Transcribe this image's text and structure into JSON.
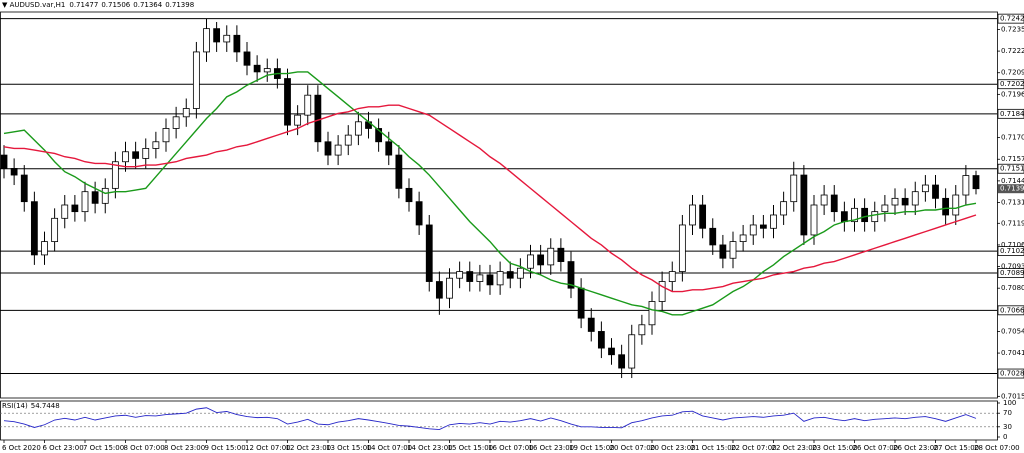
{
  "chart_data": [
    {
      "type": "candlestick",
      "title": "AUDUSD.var,H1",
      "categories": [
        "6 Oct 2020",
        null,
        null,
        null,
        "6 Oct 23:00",
        null,
        null,
        null,
        "7 Oct 15:00",
        null,
        null,
        null,
        "8 Oct 07:00",
        null,
        null,
        null,
        "8 Oct 23:00",
        null,
        null,
        null,
        "9 Oct 15:00",
        null,
        null,
        null,
        "12 Oct 07:00",
        null,
        null,
        null,
        "12 Oct 23:00",
        null,
        null,
        null,
        "13 Oct 15:00",
        null,
        null,
        null,
        "14 Oct 07:00",
        null,
        null,
        null,
        "14 Oct 23:00",
        null,
        null,
        null,
        "15 Oct 15:00",
        null,
        null,
        null,
        "16 Oct 07:00",
        null,
        null,
        null,
        "16 Oct 23:00",
        null,
        null,
        null,
        "19 Oct 15:00",
        null,
        null,
        null,
        "20 Oct 07:00",
        null,
        null,
        null,
        "20 Oct 23:00",
        null,
        null,
        null,
        "21 Oct 15:00",
        null,
        null,
        null,
        "22 Oct 07:00",
        null,
        null,
        null,
        "22 Oct 23:00",
        null,
        null,
        null,
        "23 Oct 15:00",
        null,
        null,
        null,
        "26 Oct 07:00",
        null,
        null,
        null,
        "26 Oct 23:00",
        null,
        null,
        null,
        "27 Oct 15:00",
        null,
        null,
        null,
        "28 Oct 07:00"
      ],
      "open": [
        0.716,
        0.7152,
        0.7148,
        0.7132,
        0.71,
        0.7108,
        0.7122,
        0.713,
        0.7126,
        0.7138,
        0.7131,
        0.714,
        0.7156,
        0.7162,
        0.7158,
        0.7164,
        0.7168,
        0.7176,
        0.7183,
        0.7188,
        0.7222,
        0.7236,
        0.7228,
        0.7232,
        0.7222,
        0.7214,
        0.721,
        0.7212,
        0.7206,
        0.7178,
        0.7184,
        0.7196,
        0.7168,
        0.716,
        0.7166,
        0.7172,
        0.718,
        0.7176,
        0.7168,
        0.716,
        0.714,
        0.7132,
        0.7118,
        0.7084,
        0.7074,
        0.7086,
        0.709,
        0.7084,
        0.7088,
        0.7082,
        0.709,
        0.7086,
        0.7092,
        0.71,
        0.7094,
        0.7104,
        0.7096,
        0.708,
        0.7062,
        0.7054,
        0.7044,
        0.704,
        0.7032,
        0.7052,
        0.7058,
        0.7072,
        0.7084,
        0.709,
        0.7118,
        0.713,
        0.7116,
        0.7106,
        0.7098,
        0.7108,
        0.7112,
        0.7118,
        0.7116,
        0.7124,
        0.7132,
        0.7148,
        0.7112,
        0.713,
        0.7136,
        0.7126,
        0.712,
        0.7128,
        0.712,
        0.7126,
        0.713,
        0.7134,
        0.713,
        0.7138,
        0.7142,
        0.7134,
        0.7124,
        0.7136,
        0.71477
      ],
      "high": [
        0.7166,
        0.7158,
        0.7154,
        0.7138,
        0.7114,
        0.7128,
        0.7136,
        0.7136,
        0.7144,
        0.7144,
        0.7146,
        0.7162,
        0.7168,
        0.7168,
        0.717,
        0.7174,
        0.7182,
        0.7189,
        0.7194,
        0.7228,
        0.7242,
        0.724,
        0.7238,
        0.7238,
        0.7228,
        0.722,
        0.7218,
        0.7218,
        0.7212,
        0.719,
        0.7202,
        0.7202,
        0.7174,
        0.7172,
        0.7178,
        0.7186,
        0.7186,
        0.7182,
        0.7174,
        0.7166,
        0.7146,
        0.7138,
        0.7124,
        0.709,
        0.7092,
        0.7096,
        0.7096,
        0.7094,
        0.7094,
        0.7096,
        0.7096,
        0.7098,
        0.7106,
        0.7106,
        0.711,
        0.711,
        0.7102,
        0.7086,
        0.7068,
        0.706,
        0.705,
        0.7046,
        0.7058,
        0.7064,
        0.7078,
        0.709,
        0.7096,
        0.7124,
        0.7136,
        0.7136,
        0.7122,
        0.7112,
        0.7114,
        0.7118,
        0.7124,
        0.7124,
        0.713,
        0.7138,
        0.7156,
        0.7154,
        0.7136,
        0.7142,
        0.7142,
        0.7132,
        0.7134,
        0.7134,
        0.7132,
        0.7136,
        0.714,
        0.714,
        0.7144,
        0.7148,
        0.7148,
        0.714,
        0.7142,
        0.7154,
        0.71506
      ],
      "low": [
        0.7146,
        0.7142,
        0.7126,
        0.7094,
        0.7094,
        0.7102,
        0.7116,
        0.712,
        0.712,
        0.7125,
        0.7125,
        0.7134,
        0.715,
        0.7152,
        0.7152,
        0.7158,
        0.7162,
        0.717,
        0.7177,
        0.7182,
        0.7216,
        0.7222,
        0.7222,
        0.7216,
        0.7208,
        0.7204,
        0.7204,
        0.72,
        0.7172,
        0.7172,
        0.7178,
        0.7162,
        0.7154,
        0.7154,
        0.716,
        0.7166,
        0.717,
        0.7162,
        0.7154,
        0.7134,
        0.7126,
        0.7112,
        0.7078,
        0.7064,
        0.7068,
        0.708,
        0.7078,
        0.7078,
        0.7076,
        0.7076,
        0.708,
        0.708,
        0.7086,
        0.7088,
        0.7088,
        0.709,
        0.7074,
        0.7056,
        0.7048,
        0.7038,
        0.7034,
        0.7026,
        0.7026,
        0.7046,
        0.7052,
        0.7066,
        0.7078,
        0.7084,
        0.7112,
        0.711,
        0.71,
        0.7092,
        0.7092,
        0.7102,
        0.7106,
        0.711,
        0.711,
        0.7118,
        0.7126,
        0.7106,
        0.7106,
        0.7124,
        0.712,
        0.7114,
        0.7114,
        0.7114,
        0.7114,
        0.712,
        0.7124,
        0.7124,
        0.7124,
        0.7132,
        0.7128,
        0.7118,
        0.7118,
        0.713,
        0.71364
      ],
      "close": [
        0.7152,
        0.7148,
        0.7132,
        0.71,
        0.7108,
        0.7122,
        0.713,
        0.7126,
        0.7138,
        0.7131,
        0.714,
        0.7156,
        0.7162,
        0.7158,
        0.7164,
        0.7168,
        0.7176,
        0.7183,
        0.7188,
        0.7222,
        0.7236,
        0.7228,
        0.7232,
        0.7222,
        0.7214,
        0.721,
        0.7212,
        0.7206,
        0.7178,
        0.7184,
        0.7196,
        0.7168,
        0.716,
        0.7166,
        0.7172,
        0.718,
        0.7176,
        0.7168,
        0.716,
        0.714,
        0.7132,
        0.7118,
        0.7084,
        0.7074,
        0.7086,
        0.709,
        0.7084,
        0.7088,
        0.7082,
        0.709,
        0.7086,
        0.7092,
        0.71,
        0.7094,
        0.7104,
        0.7096,
        0.708,
        0.7062,
        0.7054,
        0.7044,
        0.704,
        0.7032,
        0.7052,
        0.7058,
        0.7072,
        0.7084,
        0.709,
        0.7118,
        0.713,
        0.7116,
        0.7106,
        0.7098,
        0.7108,
        0.7112,
        0.7118,
        0.7116,
        0.7124,
        0.7132,
        0.7148,
        0.7112,
        0.713,
        0.7136,
        0.7126,
        0.712,
        0.7128,
        0.712,
        0.7126,
        0.713,
        0.7134,
        0.713,
        0.7138,
        0.7142,
        0.7134,
        0.7124,
        0.7136,
        0.71477,
        0.71398
      ],
      "up_color": "#ffffff",
      "down_color": "#000000",
      "series": [
        {
          "color": "#1a9a1a",
          "values": [
            0.7173,
            0.7174,
            0.7175,
            0.7169,
            0.7163,
            0.7156,
            0.715,
            0.7147,
            0.7143,
            0.714,
            0.7137,
            0.7138,
            0.7138,
            0.7139,
            0.714,
            0.7147,
            0.7154,
            0.7161,
            0.7168,
            0.7175,
            0.7182,
            0.7188,
            0.7195,
            0.7198,
            0.7202,
            0.7205,
            0.7208,
            0.7209,
            0.7209,
            0.721,
            0.721,
            0.7205,
            0.72,
            0.7195,
            0.719,
            0.7185,
            0.718,
            0.7175,
            0.717,
            0.7165,
            0.7159,
            0.7154,
            0.7148,
            0.7141,
            0.7134,
            0.7127,
            0.712,
            0.7114,
            0.7108,
            0.7101,
            0.7095,
            0.7093,
            0.709,
            0.7088,
            0.7085,
            0.7083,
            0.7082,
            0.708,
            0.7078,
            0.7076,
            0.7074,
            0.7072,
            0.707,
            0.7069,
            0.7067,
            0.7066,
            0.7064,
            0.7064,
            0.7066,
            0.7068,
            0.707,
            0.7074,
            0.7078,
            0.7081,
            0.7085,
            0.709,
            0.7094,
            0.7099,
            0.7103,
            0.7107,
            0.7111,
            0.7114,
            0.7118,
            0.712,
            0.7121,
            0.7123,
            0.7124,
            0.7125,
            0.7125,
            0.7126,
            0.7126,
            0.7127,
            0.7127,
            0.7128,
            0.7128,
            0.713,
            0.7131
          ]
        },
        {
          "color": "#e5183c",
          "values": [
            0.7165,
            0.7164,
            0.7164,
            0.7163,
            0.7162,
            0.7161,
            0.7159,
            0.7158,
            0.7156,
            0.7155,
            0.7155,
            0.7154,
            0.7153,
            0.7153,
            0.7154,
            0.7154,
            0.7155,
            0.7156,
            0.7158,
            0.7159,
            0.716,
            0.7162,
            0.7163,
            0.7165,
            0.7166,
            0.7168,
            0.717,
            0.7172,
            0.7174,
            0.7176,
            0.7179,
            0.7181,
            0.7183,
            0.7185,
            0.7186,
            0.7188,
            0.7189,
            0.7189,
            0.719,
            0.719,
            0.7188,
            0.7186,
            0.7184,
            0.718,
            0.7176,
            0.7172,
            0.7168,
            0.7164,
            0.7159,
            0.7155,
            0.715,
            0.7145,
            0.714,
            0.7135,
            0.713,
            0.7125,
            0.712,
            0.7115,
            0.711,
            0.7106,
            0.7101,
            0.7097,
            0.7092,
            0.7088,
            0.7085,
            0.7081,
            0.7078,
            0.7078,
            0.7079,
            0.7079,
            0.708,
            0.7081,
            0.7083,
            0.7084,
            0.7085,
            0.7086,
            0.7088,
            0.7089,
            0.709,
            0.7092,
            0.7093,
            0.7095,
            0.7096,
            0.7098,
            0.71,
            0.7102,
            0.7104,
            0.7106,
            0.7108,
            0.711,
            0.7112,
            0.7114,
            0.7116,
            0.7118,
            0.712,
            0.7122,
            0.7124
          ]
        }
      ],
      "levels": [
        {
          "value": 0.7242,
          "label": "0.72420"
        },
        0.72026,
        0.71848,
        0.71518,
        0.71023,
        0.70891,
        0.70667,
        0.70287
      ],
      "ylim": [
        0.7014,
        0.7246
      ],
      "yticks": [
        0.72355,
        0.72225,
        0.72095,
        0.71965,
        0.71705,
        0.71575,
        0.71445,
        0.71315,
        {
          "value": 0.7119,
          "label": "0.71190"
        },
        {
          "value": 0.7106,
          "label": "0.71060"
        },
        {
          "value": 0.7093,
          "label": "0.70930"
        },
        {
          "value": 0.708,
          "label": "0.70800"
        },
        {
          "value": 0.7054,
          "label": "0.70540"
        },
        {
          "value": 0.7041,
          "label": "0.70410"
        },
        {
          "value": 0.7015,
          "label": "0.70150"
        }
      ],
      "grid": false
    },
    {
      "type": "line",
      "title": "RSI(14)",
      "color": "#2626c8",
      "values": [
        48,
        45,
        38,
        28,
        36,
        50,
        55,
        50,
        58,
        50,
        56,
        62,
        64,
        58,
        63,
        62,
        66,
        68,
        70,
        82,
        86,
        72,
        75,
        66,
        60,
        57,
        58,
        54,
        38,
        44,
        52,
        38,
        36,
        44,
        48,
        54,
        50,
        45,
        40,
        34,
        32,
        28,
        24,
        22,
        36,
        40,
        38,
        42,
        38,
        46,
        44,
        48,
        54,
        47,
        56,
        48,
        38,
        30,
        30,
        28,
        28,
        27,
        42,
        48,
        56,
        62,
        64,
        74,
        76,
        62,
        56,
        50,
        56,
        58,
        60,
        58,
        62,
        64,
        70,
        46,
        56,
        58,
        52,
        48,
        54,
        48,
        52,
        54,
        56,
        54,
        58,
        60,
        54,
        46,
        56,
        66,
        54.7448
      ],
      "ylim": [
        0,
        100
      ],
      "yticks": [
        100,
        70,
        30,
        0
      ]
    }
  ]
}
